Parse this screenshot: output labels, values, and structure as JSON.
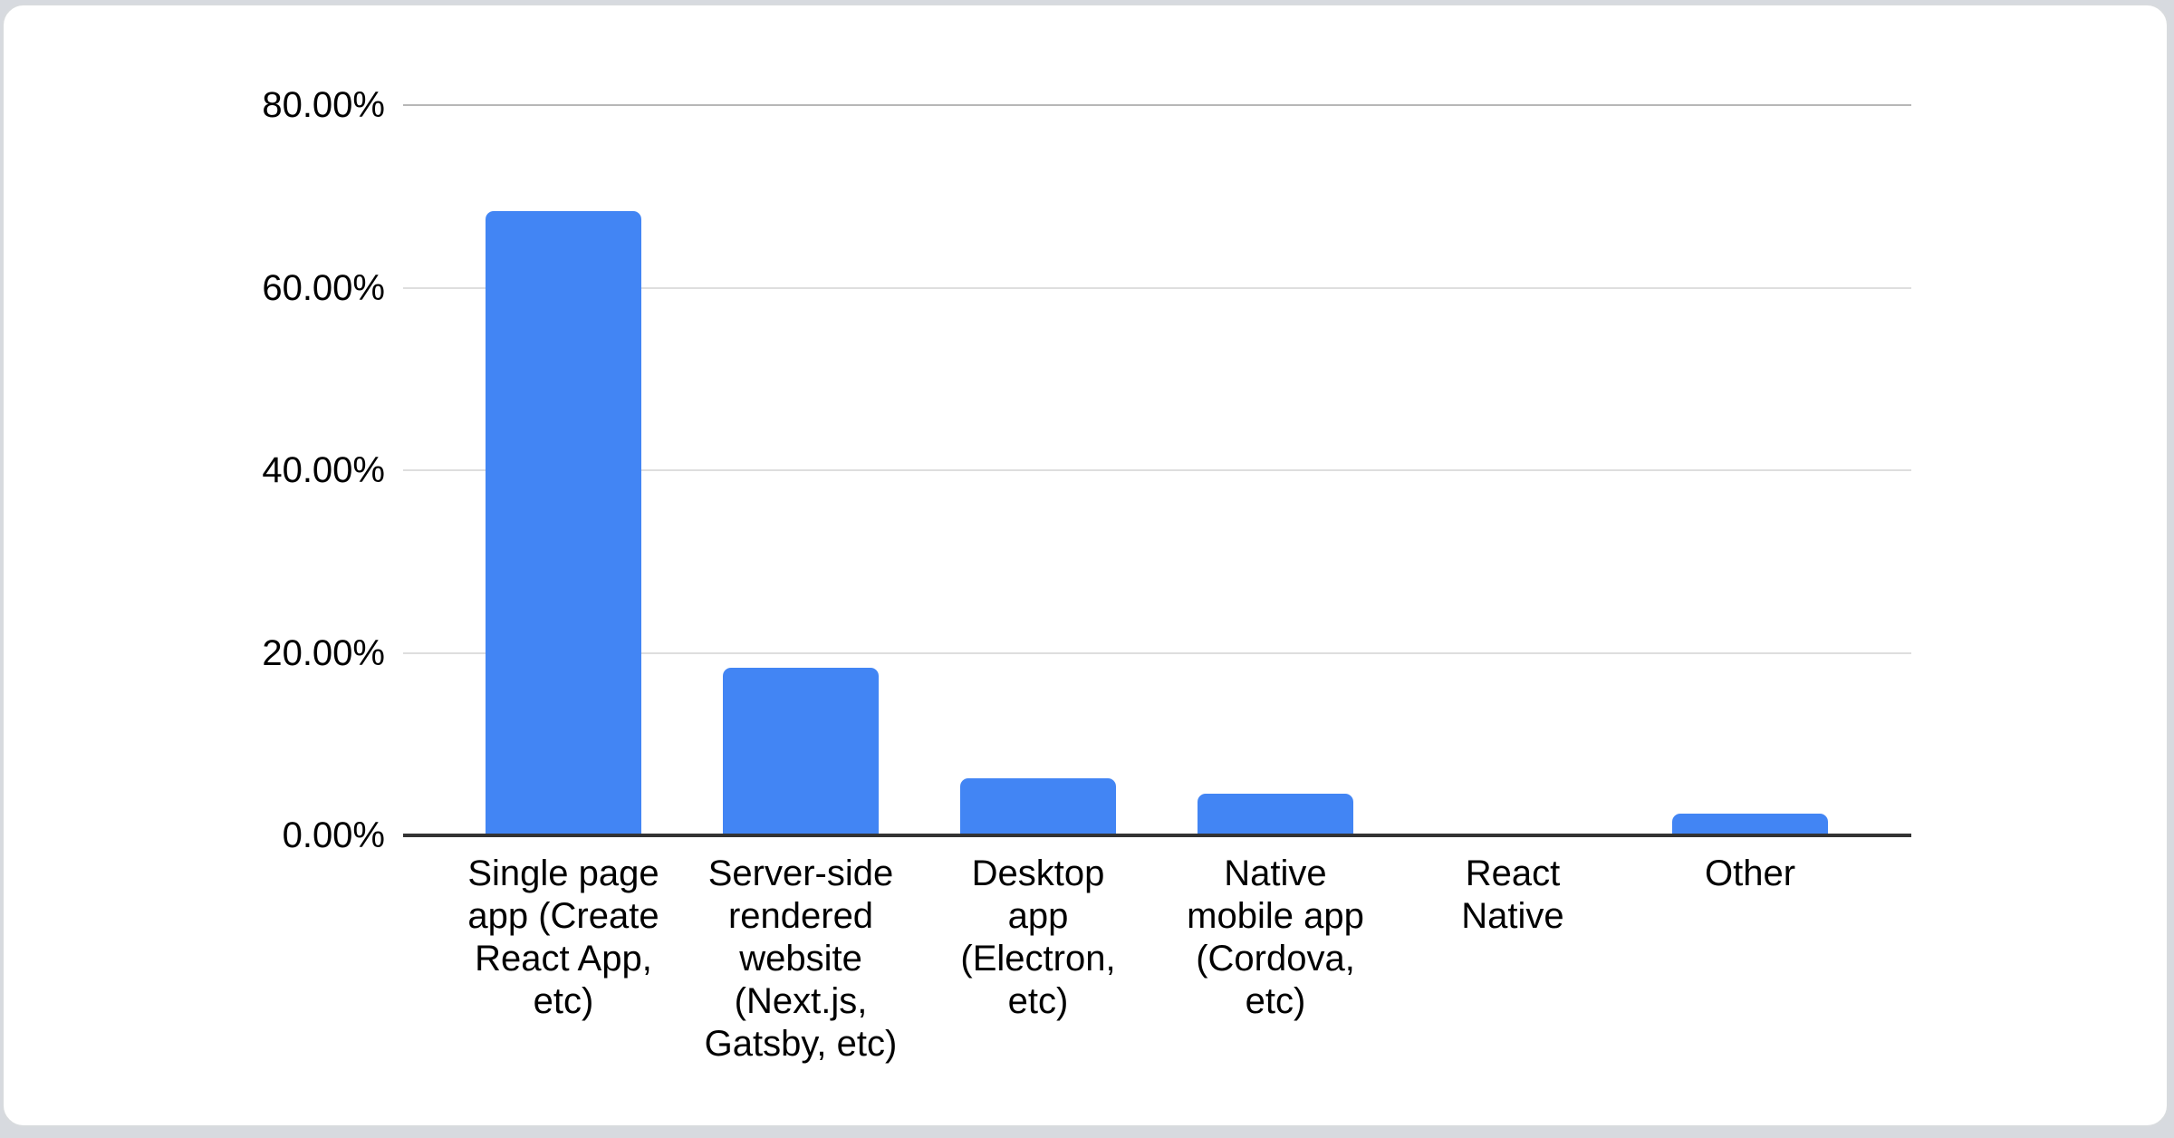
{
  "page": {
    "background_color": "#d7dadf",
    "card_background": "#ffffff",
    "card_border_color": "#d8dbde"
  },
  "chart_data": {
    "type": "bar",
    "categories": [
      "Single page app (Create React App, etc)",
      "Server-side rendered website (Next.js, Gatsby, etc)",
      "Desktop app (Electron, etc)",
      "Native mobile app (Cordova, etc)",
      "React Native",
      "Other"
    ],
    "category_lines": [
      [
        "Single page",
        "app (Create",
        "React App,",
        "etc)"
      ],
      [
        "Server-side",
        "rendered",
        "website",
        "(Next.js,",
        "Gatsby, etc)"
      ],
      [
        "Desktop",
        "app",
        "(Electron,",
        "etc)"
      ],
      [
        "Native",
        "mobile app",
        "(Cordova,",
        "etc)"
      ],
      [
        "React",
        "Native"
      ],
      [
        "Other"
      ]
    ],
    "values": [
      68.4,
      18.4,
      6.3,
      4.6,
      0,
      2.4
    ],
    "bar_color": "#4285f4",
    "axis": {
      "y_ticks": [
        "80.00%",
        "60.00%",
        "40.00%",
        "20.00%",
        "0.00%"
      ],
      "y_tick_values": [
        80,
        60,
        40,
        20,
        0
      ],
      "ylim": [
        0,
        80
      ],
      "grid": true,
      "gridline_color": "#dedede",
      "top_gridline_color": "#b7b7b7",
      "baseline_color": "#333333",
      "label_color": "#000000"
    },
    "legend_position": "none"
  }
}
